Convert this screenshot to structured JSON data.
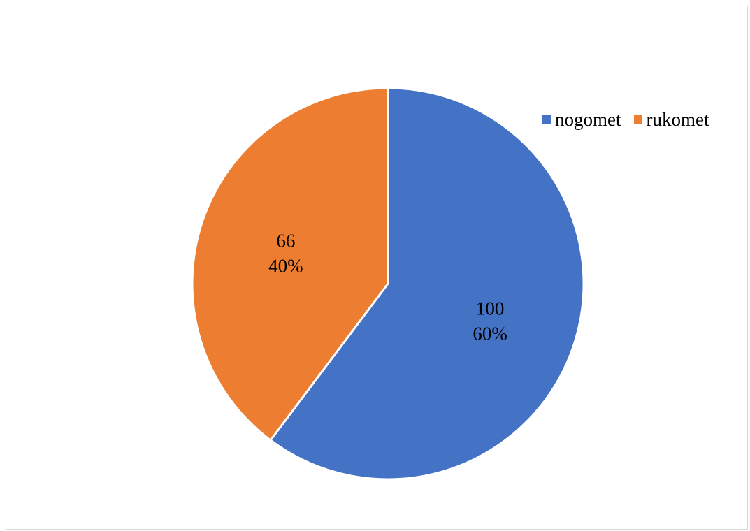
{
  "chart_data": {
    "type": "pie",
    "title": "",
    "categories": [
      "nogomet",
      "rukomet"
    ],
    "values": [
      100,
      66
    ],
    "percent_labels": [
      "60%",
      "40%"
    ],
    "colors": [
      "#4472C4",
      "#ED7D31"
    ],
    "start_angle_deg": 0,
    "direction": "clockwise",
    "legend": {
      "position": "top-right",
      "items": [
        {
          "label": "nogomet",
          "color": "#4472C4"
        },
        {
          "label": "rukomet",
          "color": "#ED7D31"
        }
      ]
    }
  }
}
